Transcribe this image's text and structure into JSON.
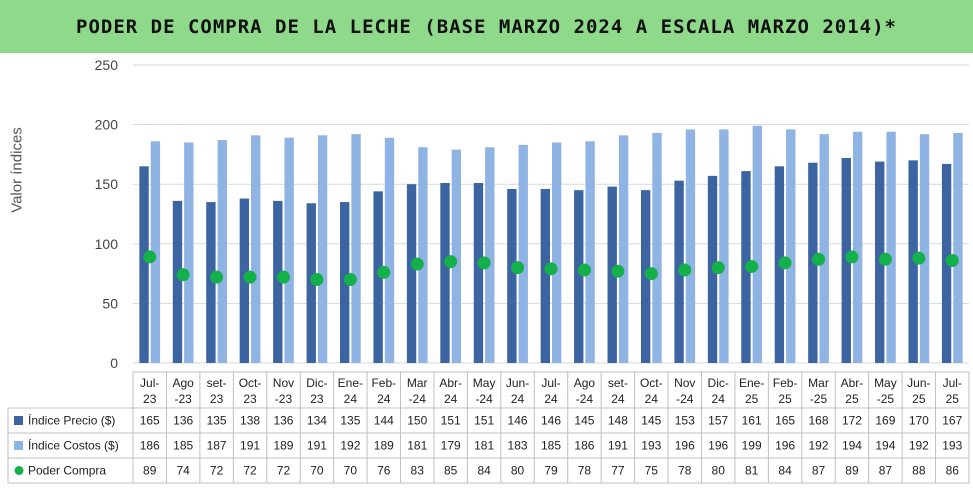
{
  "title": "PODER DE COMPRA DE LA LECHE (BASE MARZO 2024 A ESCALA MARZO 2014)*",
  "colors": {
    "title_bg": "#8ed98a",
    "precio": "#3b64a0",
    "costos": "#8fb3e3",
    "poder": "#14b04a",
    "grid": "#d9d9d9"
  },
  "chart_data": {
    "type": "bar",
    "ylabel": "Valor índices",
    "ylim": [
      0,
      250
    ],
    "yticks": [
      0,
      50,
      100,
      150,
      200,
      250
    ],
    "grid": true,
    "categories": [
      [
        "Jul-",
        "23"
      ],
      [
        "Ago",
        "-23"
      ],
      [
        "set-",
        "23"
      ],
      [
        "Oct-",
        "23"
      ],
      [
        "Nov",
        "-23"
      ],
      [
        "Dic-",
        "23"
      ],
      [
        "Ene-",
        "24"
      ],
      [
        "Feb-",
        "24"
      ],
      [
        "Mar",
        "-24"
      ],
      [
        "Abr-",
        "24"
      ],
      [
        "May",
        "-24"
      ],
      [
        "Jun-",
        "24"
      ],
      [
        "Jul-",
        "24"
      ],
      [
        "Ago",
        "-24"
      ],
      [
        "set-",
        "24"
      ],
      [
        "Oct-",
        "24"
      ],
      [
        "Nov",
        "-24"
      ],
      [
        "Dic-",
        "24"
      ],
      [
        "Ene-",
        "25"
      ],
      [
        "Feb-",
        "25"
      ],
      [
        "Mar",
        "-25"
      ],
      [
        "Abr-",
        "25"
      ],
      [
        "May",
        "-25"
      ],
      [
        "Jun-",
        "25"
      ],
      [
        "Jul-",
        "25"
      ]
    ],
    "series": [
      {
        "name": "Índice Precio ($)",
        "kind": "bar",
        "values": [
          165,
          136,
          135,
          138,
          136,
          134,
          135,
          144,
          150,
          151,
          151,
          146,
          146,
          145,
          148,
          145,
          153,
          157,
          161,
          165,
          168,
          172,
          169,
          170,
          167
        ]
      },
      {
        "name": "Índice Costos ($)",
        "kind": "bar",
        "values": [
          186,
          185,
          187,
          191,
          189,
          191,
          192,
          189,
          181,
          179,
          181,
          183,
          185,
          186,
          191,
          193,
          196,
          196,
          199,
          196,
          192,
          194,
          194,
          192,
          193
        ]
      },
      {
        "name": "Poder Compra",
        "kind": "dot",
        "values": [
          89,
          74,
          72,
          72,
          72,
          70,
          70,
          76,
          83,
          85,
          84,
          80,
          79,
          78,
          77,
          75,
          78,
          80,
          81,
          84,
          87,
          89,
          87,
          88,
          86
        ]
      }
    ]
  }
}
